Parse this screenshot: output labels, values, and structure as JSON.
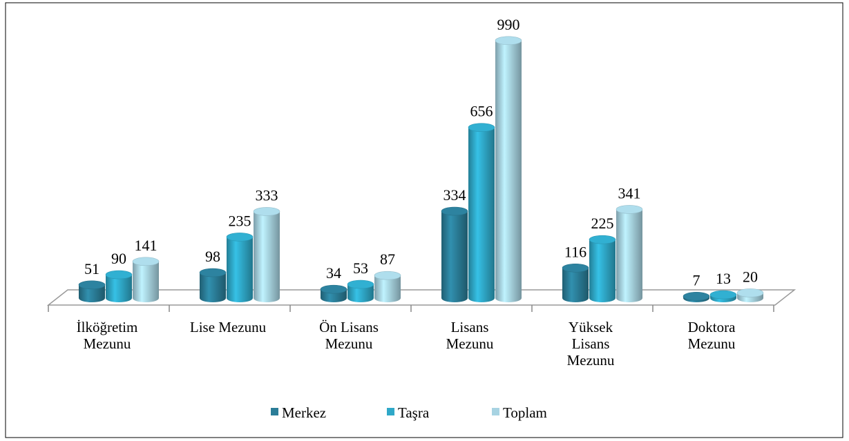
{
  "chart_data": {
    "type": "bar3d",
    "categories": [
      "İlköğretim Mezunu",
      "Lise Mezunu",
      "Ön Lisans Mezunu",
      "Lisans Mezunu",
      "Yüksek Lisans Mezunu",
      "Doktora Mezunu"
    ],
    "series": [
      {
        "name": "Merkez",
        "color": "#2b7d98",
        "values": [
          51,
          98,
          34,
          334,
          116,
          7
        ]
      },
      {
        "name": "Taşra",
        "color": "#2fa8c8",
        "values": [
          90,
          235,
          53,
          656,
          225,
          13
        ]
      },
      {
        "name": "Toplam",
        "color": "#a7d3e2",
        "values": [
          141,
          333,
          87,
          990,
          341,
          20
        ]
      }
    ],
    "data_labels": true
  }
}
